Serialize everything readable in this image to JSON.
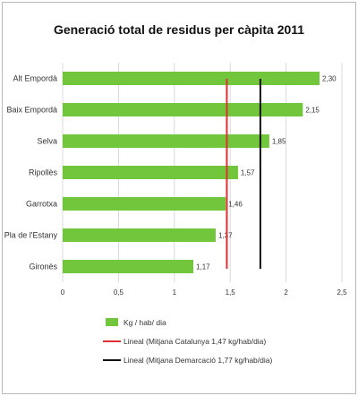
{
  "chart_data": {
    "type": "bar",
    "orientation": "horizontal",
    "title": "Generació total de residus per càpita 2011",
    "categories": [
      "Alt Empordà",
      "Baix Empordà",
      "Selva",
      "Ripollès",
      "Garrotxa",
      "Pla de l'Estany",
      "Gironès"
    ],
    "values": [
      2.3,
      2.15,
      1.85,
      1.57,
      1.46,
      1.37,
      1.17
    ],
    "value_labels": [
      "2,30",
      "2,15",
      "1,85",
      "1,57",
      "1,46",
      "1,37",
      "1,17"
    ],
    "xlim": [
      0,
      2.5
    ],
    "xticks": [
      "0",
      "0,5",
      "1",
      "1,5",
      "2",
      "2,5"
    ],
    "grid": "vertical",
    "series": [
      {
        "name": "Kg / hab/ dia",
        "color": "#72c63c"
      }
    ],
    "reference_lines": [
      {
        "name": "Lineal (Mitjana Catalunya 1,47 kg/hab/dia)",
        "value": 1.47,
        "color": "#e03030"
      },
      {
        "name": "Lineal (Mitjana Demarcació 1,77 kg/hab/dia)",
        "value": 1.77,
        "color": "#111111"
      }
    ],
    "legend_position": "bottom"
  }
}
